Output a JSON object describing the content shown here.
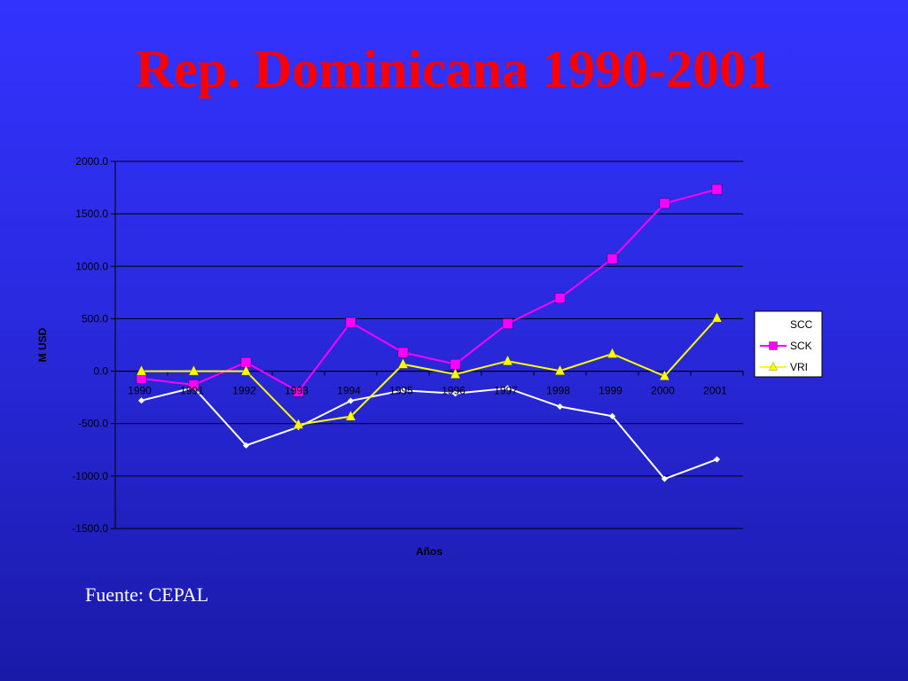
{
  "slide": {
    "title": "Rep. Dominicana  1990-2001",
    "source": "Fuente: CEPAL"
  },
  "chart_data": {
    "type": "line",
    "title": "",
    "xlabel": "Años",
    "ylabel": "M USD",
    "categories": [
      "1990",
      "1991",
      "1992",
      "1993",
      "1994",
      "1995",
      "1996",
      "1997",
      "1998",
      "1999",
      "2000",
      "2001"
    ],
    "ylim": [
      -1500,
      2000
    ],
    "yticks": [
      2000,
      1500,
      1000,
      500,
      0,
      -500,
      -1000,
      -1500
    ],
    "ytick_labels": [
      "2000.0",
      "1500.0",
      "1000.0",
      "500.0",
      "0.0",
      "-500.0",
      "-1000.0",
      "-1500.0"
    ],
    "grid": "horizontal",
    "legend_position": "right",
    "series": [
      {
        "name": "SCC",
        "color": "#ffffff",
        "marker": "diamond",
        "values": [
          -280,
          -157,
          -708,
          -533,
          -283,
          -183,
          -213,
          -163,
          -338,
          -429,
          -1027,
          -841
        ]
      },
      {
        "name": "SCK",
        "color": "#ff00ff",
        "marker": "square",
        "values": [
          -70,
          -130,
          84,
          -195,
          465,
          178,
          67,
          453,
          697,
          1072,
          1599,
          1733
        ]
      },
      {
        "name": "VRI",
        "color": "#ffff00",
        "marker": "triangle",
        "values": [
          0,
          0,
          0,
          -510,
          -432,
          65,
          -30,
          96,
          3,
          165,
          -47,
          506
        ]
      }
    ]
  }
}
